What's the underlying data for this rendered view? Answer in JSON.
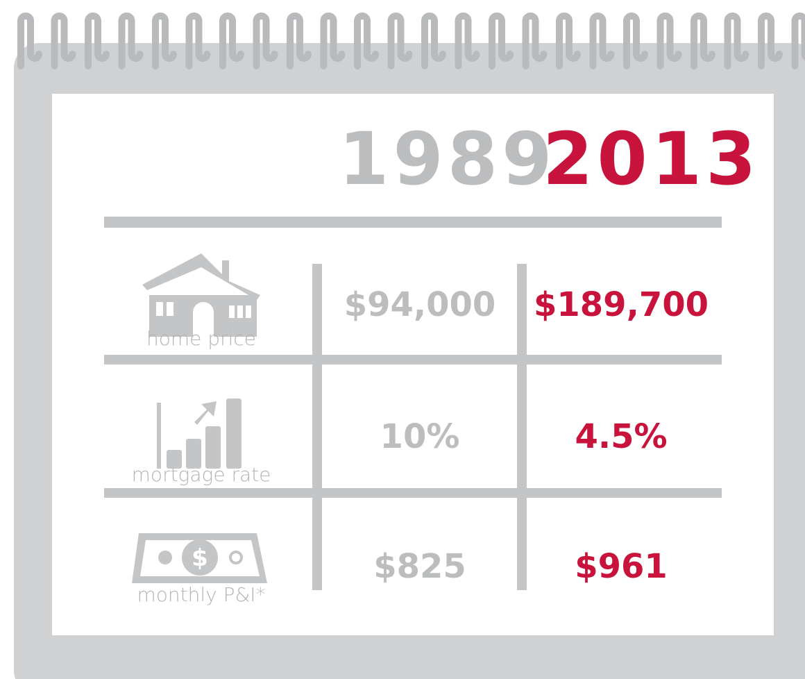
{
  "header": {
    "years": [
      "1989",
      "2013"
    ]
  },
  "rows": [
    {
      "label": "home price",
      "values": [
        "$94,000",
        "$189,700"
      ]
    },
    {
      "label": "mortgage rate",
      "values": [
        "10%",
        "4.5%"
      ]
    },
    {
      "label": "monthly P&I*",
      "values": [
        "$825",
        "$961"
      ]
    }
  ]
}
